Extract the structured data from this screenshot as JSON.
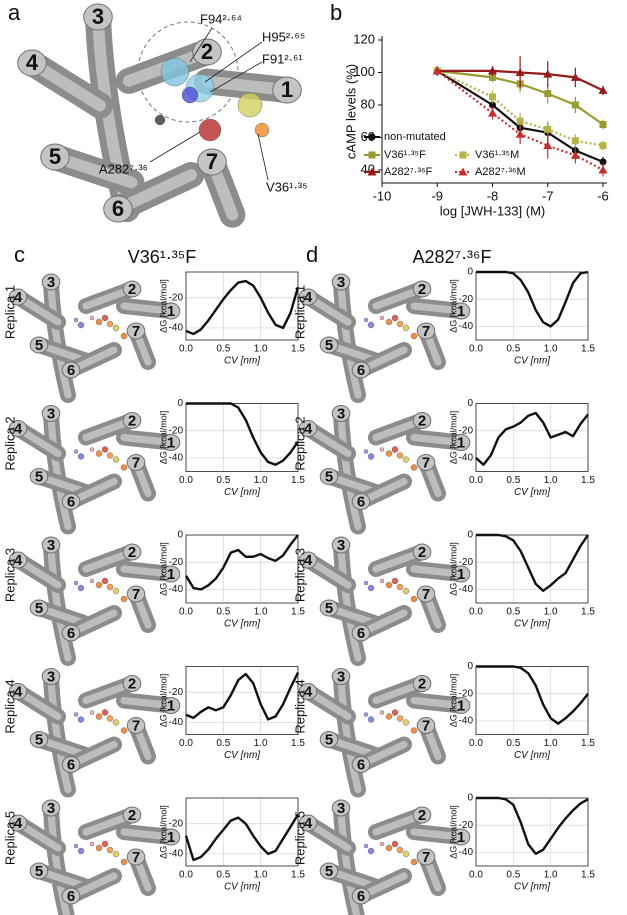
{
  "panels": [
    "a",
    "b"
  ],
  "structure": {
    "helices": [
      "1",
      "2",
      "3",
      "4",
      "5",
      "6",
      "7"
    ],
    "residue_labels": [
      "F94²·⁶⁴",
      "H95²·⁶⁵",
      "F91²·⁶¹",
      "A282⁷·³⁶",
      "V36¹·³⁵"
    ]
  },
  "sections": [
    {
      "letter": "c",
      "title": "V36¹·³⁵F"
    },
    {
      "letter": "d",
      "title": "A282⁷·³⁶F"
    }
  ],
  "chart_data": [
    {
      "type": "doseline",
      "ylabel": "cAMP levels (%)",
      "xlabel": "log [JWH-133] (M)",
      "x": [
        -9,
        -8,
        -7.5,
        -7,
        -6.5,
        -6
      ],
      "xlim": [
        -10,
        -6
      ],
      "xticks": [
        -10,
        -9,
        -8,
        -7,
        -6
      ],
      "ylim": [
        32,
        120
      ],
      "yticks": [
        40,
        60,
        80,
        100,
        120
      ],
      "legend": "lower left",
      "series": [
        {
          "name": "non-mutated",
          "color": "#111111",
          "marker": "circle",
          "dash": "solid",
          "values": [
            101,
            80,
            66,
            63,
            52,
            45
          ],
          "errors": [
            3,
            3,
            4,
            6,
            3,
            3
          ]
        },
        {
          "name": "V36¹·³⁵F",
          "color": "#9a9a32",
          "marker": "square",
          "dash": "solid",
          "values": [
            101,
            97,
            93,
            87,
            80,
            68
          ],
          "errors": [
            3,
            3,
            5,
            6,
            5,
            3
          ]
        },
        {
          "name": "V36¹·³⁵M",
          "color": "#b3b34a",
          "marker": "square",
          "dash": "dotted",
          "values": [
            101,
            85,
            70,
            65,
            58,
            55
          ],
          "errors": [
            3,
            4,
            5,
            5,
            4,
            3
          ]
        },
        {
          "name": "A282⁷·³⁶F",
          "color": "#961c1c",
          "marker": "triangle",
          "dash": "solid",
          "values": [
            101,
            101,
            100,
            99,
            97,
            89
          ],
          "errors": [
            3,
            3,
            10,
            8,
            6,
            3
          ]
        },
        {
          "name": "A282⁷·³⁶M",
          "color": "#c43030",
          "marker": "triangle",
          "dash": "dotted",
          "values": [
            101,
            75,
            62,
            55,
            49,
            40
          ],
          "errors": [
            3,
            4,
            6,
            8,
            5,
            4
          ]
        }
      ]
    },
    {
      "type": "profile",
      "label": "Replica 1",
      "ylabel": "ΔG [kcal/mol]",
      "xlabel": "CV [nm]",
      "color": "#111111",
      "grid": true,
      "x": [
        0,
        0.1,
        0.2,
        0.3,
        0.4,
        0.5,
        0.6,
        0.7,
        0.8,
        0.9,
        1,
        1.1,
        1.2,
        1.3,
        1.4,
        1.5
      ],
      "values": [
        -42,
        -44,
        -41,
        -35,
        -28,
        -21,
        -15,
        -10,
        -9,
        -12,
        -20,
        -30,
        -38,
        -40,
        -30,
        -13
      ],
      "xlim": [
        0,
        1.5
      ],
      "xticks": [
        {
          "value": 0,
          "label": "0.0"
        },
        0.5,
        {
          "value": 1,
          "label": "1.0"
        },
        1.5
      ],
      "ylim": [
        -48,
        -3
      ],
      "yticks": [
        -20,
        -40
      ]
    },
    {
      "type": "profile",
      "label": "Replica 2",
      "ylabel": "ΔG [kcal/mol]",
      "xlabel": "CV [nm]",
      "color": "#111111",
      "grid": true,
      "x": [
        0,
        0.1,
        0.2,
        0.3,
        0.4,
        0.5,
        0.6,
        0.7,
        0.8,
        0.9,
        1,
        1.1,
        1.2,
        1.3,
        1.4,
        1.5
      ],
      "values": [
        0,
        0,
        0,
        0,
        0,
        0,
        0,
        -3,
        -12,
        -25,
        -36,
        -43,
        -45,
        -42,
        -36,
        -28
      ],
      "xlim": [
        0,
        1.5
      ],
      "xticks": [
        {
          "value": 0,
          "label": "0.0"
        },
        0.5,
        {
          "value": 1,
          "label": "1.0"
        },
        1.5
      ],
      "ylim": [
        -50,
        0
      ],
      "yticks": [
        0,
        -20,
        -40
      ]
    },
    {
      "type": "profile",
      "label": "Replica 3",
      "ylabel": "ΔG [kcal/mol]",
      "xlabel": "CV [nm]",
      "color": "#111111",
      "grid": true,
      "x": [
        0,
        0.1,
        0.2,
        0.3,
        0.4,
        0.5,
        0.6,
        0.7,
        0.8,
        0.9,
        1,
        1.1,
        1.2,
        1.3,
        1.4,
        1.5
      ],
      "values": [
        -30,
        -39,
        -40,
        -37,
        -32,
        -24,
        -13,
        -11,
        -16,
        -16,
        -14,
        -17,
        -19,
        -15,
        -7,
        0
      ],
      "xlim": [
        0,
        1.5
      ],
      "xticks": [
        {
          "value": 0,
          "label": "0.0"
        },
        0.5,
        {
          "value": 1,
          "label": "1.0"
        },
        1.5
      ],
      "ylim": [
        -50,
        0
      ],
      "yticks": [
        0,
        -20,
        -40
      ]
    },
    {
      "type": "profile",
      "label": "Replica 4",
      "ylabel": "ΔG [kcal/mol]",
      "xlabel": "CV [nm]",
      "color": "#111111",
      "grid": true,
      "x": [
        0,
        0.1,
        0.2,
        0.3,
        0.4,
        0.5,
        0.6,
        0.7,
        0.8,
        0.9,
        1,
        1.1,
        1.2,
        1.3,
        1.4,
        1.5
      ],
      "values": [
        -35,
        -37,
        -33,
        -30,
        -32,
        -30,
        -22,
        -12,
        -8,
        -14,
        -28,
        -38,
        -36,
        -28,
        -17,
        -7
      ],
      "xlim": [
        0,
        1.5
      ],
      "xticks": [
        {
          "value": 0,
          "label": "0.0"
        },
        0.5,
        {
          "value": 1,
          "label": "1.0"
        },
        1.5
      ],
      "ylim": [
        -48,
        -3
      ],
      "yticks": [
        -20,
        -40
      ]
    },
    {
      "type": "profile",
      "label": "Replica 5",
      "ylabel": "ΔG [kcal/mol]",
      "xlabel": "CV [nm]",
      "color": "#111111",
      "grid": true,
      "x": [
        0,
        0.1,
        0.2,
        0.3,
        0.4,
        0.5,
        0.6,
        0.7,
        0.8,
        0.9,
        1,
        1.1,
        1.2,
        1.3,
        1.4,
        1.5
      ],
      "values": [
        -28,
        -44,
        -42,
        -37,
        -30,
        -24,
        -18,
        -16,
        -20,
        -28,
        -35,
        -40,
        -38,
        -30,
        -22,
        -14
      ],
      "xlim": [
        0,
        1.5
      ],
      "xticks": [
        {
          "value": 0,
          "label": "0.0"
        },
        0.5,
        {
          "value": 1,
          "label": "1.0"
        },
        1.5
      ],
      "ylim": [
        -48,
        -3
      ],
      "yticks": [
        -20,
        -40
      ]
    },
    {
      "type": "profile",
      "label": "Replica 1",
      "ylabel": "ΔG [kcal/mol]",
      "xlabel": "CV [nm]",
      "color": "#111111",
      "grid": true,
      "x": [
        0,
        0.1,
        0.2,
        0.3,
        0.4,
        0.5,
        0.6,
        0.7,
        0.8,
        0.9,
        1,
        1.1,
        1.2,
        1.3,
        1.4,
        1.5
      ],
      "values": [
        0,
        0,
        0,
        0,
        0,
        -1,
        -6,
        -15,
        -28,
        -37,
        -40,
        -35,
        -22,
        -8,
        -1,
        0
      ],
      "xlim": [
        0,
        1.5
      ],
      "xticks": [
        {
          "value": 0,
          "label": "0.0"
        },
        0.5,
        {
          "value": 1,
          "label": "1.0"
        },
        1.5
      ],
      "ylim": [
        -50,
        0
      ],
      "yticks": [
        0,
        -20,
        -40
      ]
    },
    {
      "type": "profile",
      "label": "Replica 2",
      "ylabel": "ΔG [kcal/mol]",
      "xlabel": "CV [nm]",
      "color": "#111111",
      "grid": true,
      "x": [
        0,
        0.1,
        0.2,
        0.3,
        0.4,
        0.5,
        0.6,
        0.7,
        0.8,
        0.9,
        1,
        1.1,
        1.2,
        1.3,
        1.4,
        1.5
      ],
      "values": [
        -40,
        -45,
        -38,
        -25,
        -19,
        -17,
        -14,
        -9,
        -7,
        -14,
        -25,
        -23,
        -21,
        -24,
        -15,
        -8
      ],
      "xlim": [
        0,
        1.5
      ],
      "xticks": [
        {
          "value": 0,
          "label": "0.0"
        },
        0.5,
        {
          "value": 1,
          "label": "1.0"
        },
        1.5
      ],
      "ylim": [
        -50,
        0
      ],
      "yticks": [
        0,
        -20,
        -40
      ]
    },
    {
      "type": "profile",
      "label": "Replica 3",
      "ylabel": "ΔG [kcal/mol]",
      "xlabel": "CV [nm]",
      "color": "#111111",
      "grid": true,
      "x": [
        0,
        0.1,
        0.2,
        0.3,
        0.4,
        0.5,
        0.6,
        0.7,
        0.8,
        0.9,
        1,
        1.1,
        1.2,
        1.3,
        1.4,
        1.5
      ],
      "values": [
        0,
        0,
        0,
        0,
        -1,
        -4,
        -12,
        -24,
        -36,
        -41,
        -37,
        -32,
        -28,
        -18,
        -8,
        0
      ],
      "xlim": [
        0,
        1.5
      ],
      "xticks": [
        {
          "value": 0,
          "label": "0.0"
        },
        0.5,
        {
          "value": 1,
          "label": "1.0"
        },
        1.5
      ],
      "ylim": [
        -50,
        0
      ],
      "yticks": [
        0,
        -20,
        -40
      ]
    },
    {
      "type": "profile",
      "label": "Replica 4",
      "ylabel": "ΔG [kcal/mol]",
      "xlabel": "CV [nm]",
      "color": "#111111",
      "grid": true,
      "x": [
        0,
        0.1,
        0.2,
        0.3,
        0.4,
        0.5,
        0.6,
        0.7,
        0.8,
        0.9,
        1,
        1.1,
        1.2,
        1.3,
        1.4,
        1.5
      ],
      "values": [
        0,
        0,
        0,
        0,
        0,
        0,
        -1,
        -5,
        -14,
        -28,
        -38,
        -42,
        -38,
        -33,
        -27,
        -20
      ],
      "xlim": [
        0,
        1.5
      ],
      "xticks": [
        {
          "value": 0,
          "label": "0.0"
        },
        0.5,
        {
          "value": 1,
          "label": "1.0"
        },
        1.5
      ],
      "ylim": [
        -50,
        0
      ],
      "yticks": [
        0,
        -20,
        -40
      ]
    },
    {
      "type": "profile",
      "label": "Replica 5",
      "ylabel": "ΔG [kcal/mol]",
      "xlabel": "CV [nm]",
      "color": "#111111",
      "grid": true,
      "x": [
        0,
        0.1,
        0.2,
        0.3,
        0.4,
        0.5,
        0.6,
        0.7,
        0.8,
        0.9,
        1,
        1.1,
        1.2,
        1.3,
        1.4,
        1.5
      ],
      "values": [
        0,
        0,
        0,
        0,
        -1,
        -5,
        -18,
        -34,
        -41,
        -38,
        -30,
        -22,
        -15,
        -9,
        -4,
        -1
      ],
      "xlim": [
        0,
        1.5
      ],
      "xticks": [
        {
          "value": 0,
          "label": "0.0"
        },
        0.5,
        {
          "value": 1,
          "label": "1.0"
        },
        1.5
      ],
      "ylim": [
        -50,
        0
      ],
      "yticks": [
        0,
        -20,
        -40
      ]
    }
  ]
}
